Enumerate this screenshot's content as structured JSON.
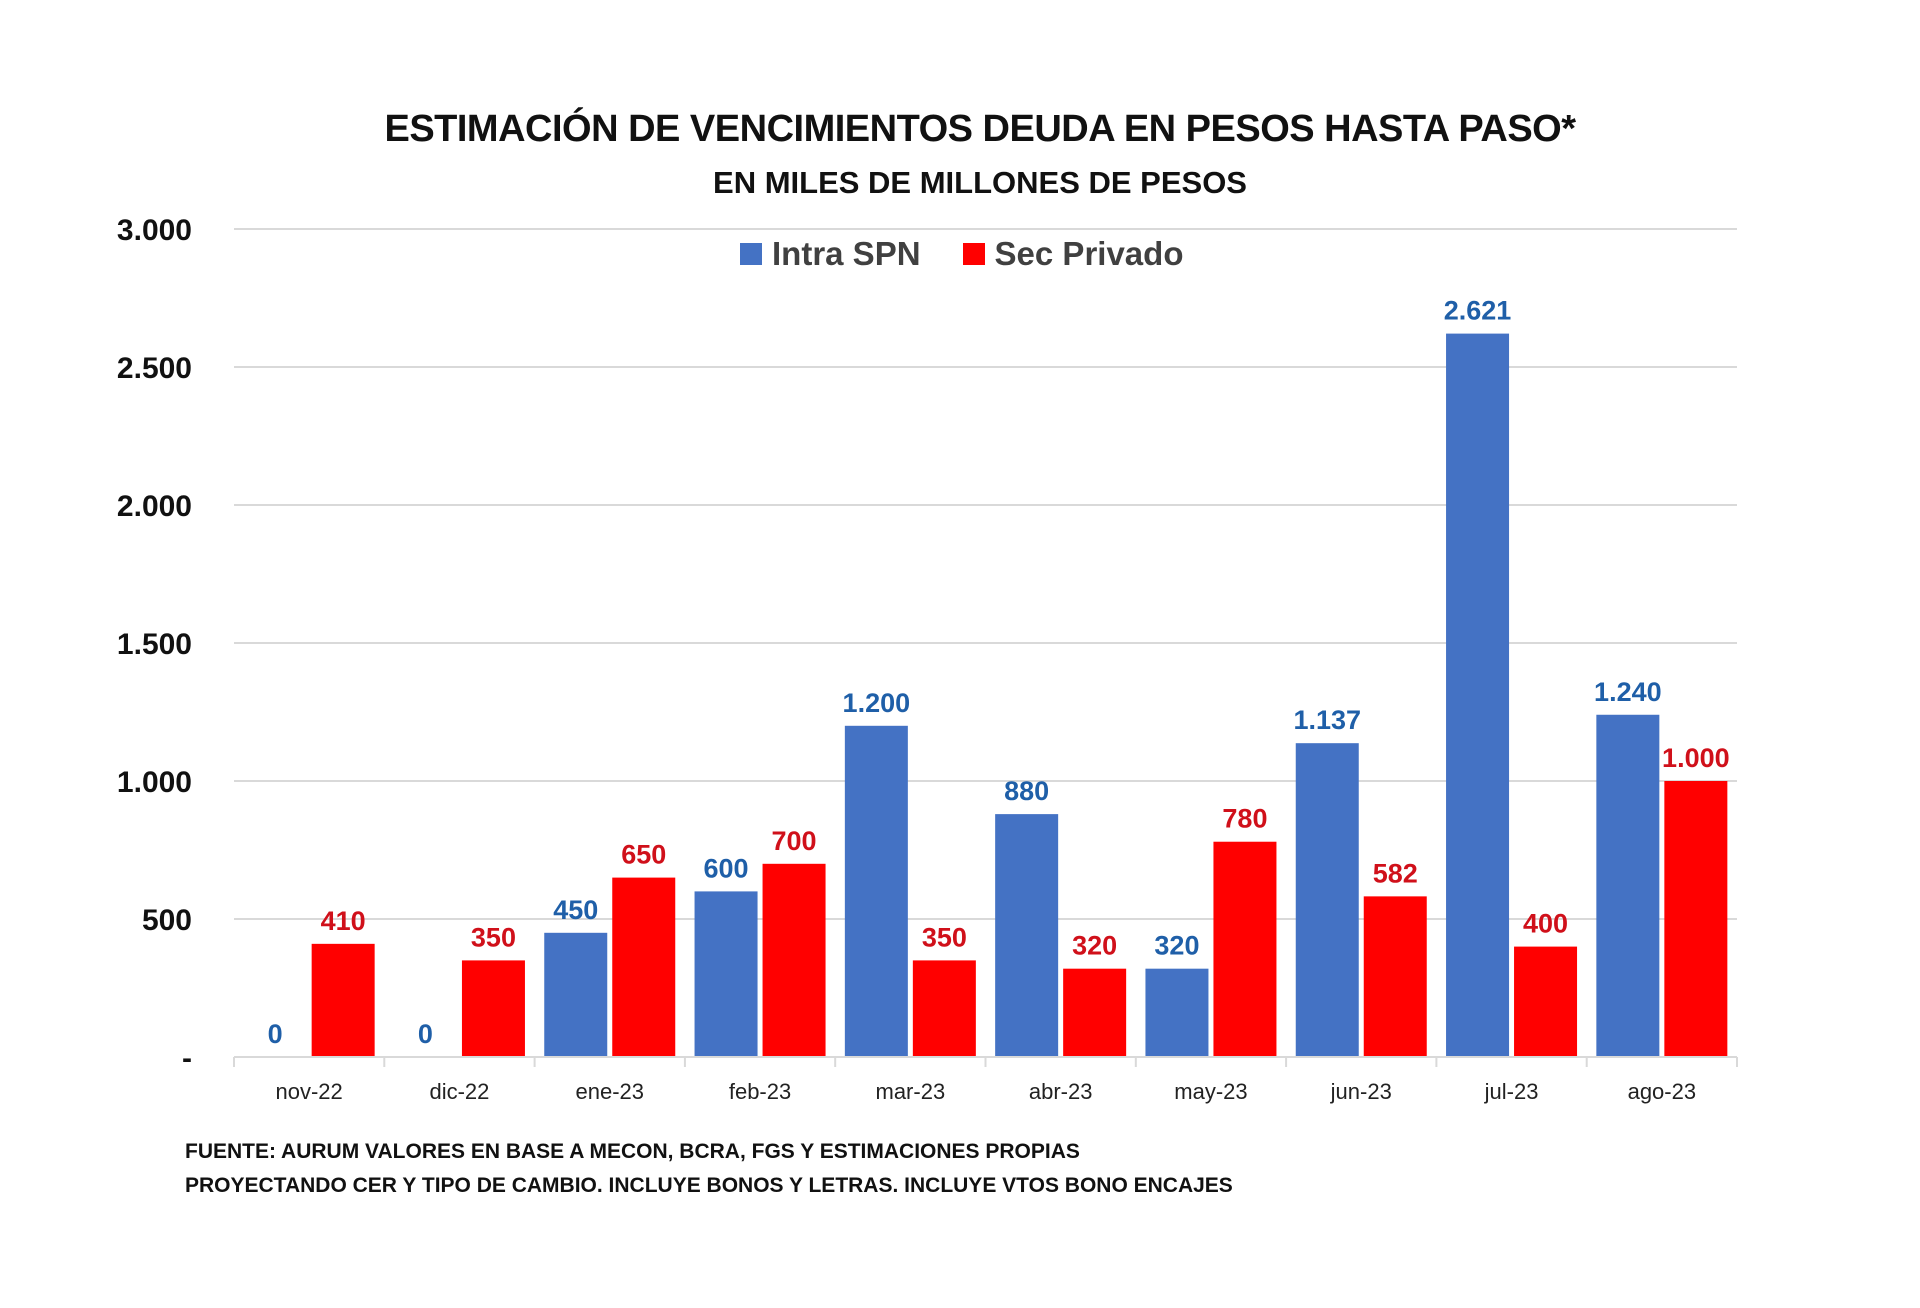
{
  "chart_data": {
    "type": "bar",
    "title": "ESTIMACIÓN DE VENCIMIENTOS DEUDA EN PESOS HASTA PASO*",
    "subtitle": "EN MILES DE MILLONES DE PESOS",
    "xlabel": "",
    "ylabel": "",
    "ylim": [
      0,
      3000
    ],
    "yticks": [
      0,
      500,
      1000,
      1500,
      2000,
      2500,
      3000
    ],
    "ytick_labels": [
      "-",
      "500",
      "1.000",
      "1.500",
      "2.000",
      "2.500",
      "3.000"
    ],
    "grid": true,
    "legend_position": "top-center",
    "categories": [
      "nov-22",
      "dic-22",
      "ene-23",
      "feb-23",
      "mar-23",
      "abr-23",
      "may-23",
      "jun-23",
      "jul-23",
      "ago-23"
    ],
    "series": [
      {
        "name": "Intra SPN",
        "color": "#4472C4",
        "label_color": "#1F5FA8",
        "values": [
          0,
          0,
          450,
          600,
          1200,
          880,
          320,
          1137,
          2621,
          1240
        ],
        "data_labels": [
          "0",
          "0",
          "450",
          "600",
          "1.200",
          "880",
          "320",
          "1.137",
          "2.621",
          "1.240"
        ]
      },
      {
        "name": "Sec Privado",
        "color": "#FF0000",
        "label_color": "#D0101A",
        "values": [
          410,
          350,
          650,
          700,
          350,
          320,
          780,
          582,
          400,
          1000
        ],
        "data_labels": [
          "410",
          "350",
          "650",
          "700",
          "350",
          "320",
          "780",
          "582",
          "400",
          "1.000"
        ]
      }
    ]
  },
  "footnotes": [
    "FUENTE: AURUM VALORES EN BASE A MECON, BCRA, FGS  Y ESTIMACIONES PROPIAS",
    "PROYECTANDO CER Y TIPO DE CAMBIO. INCLUYE BONOS Y LETRAS. INCLUYE VTOS BONO ENCAJES"
  ]
}
